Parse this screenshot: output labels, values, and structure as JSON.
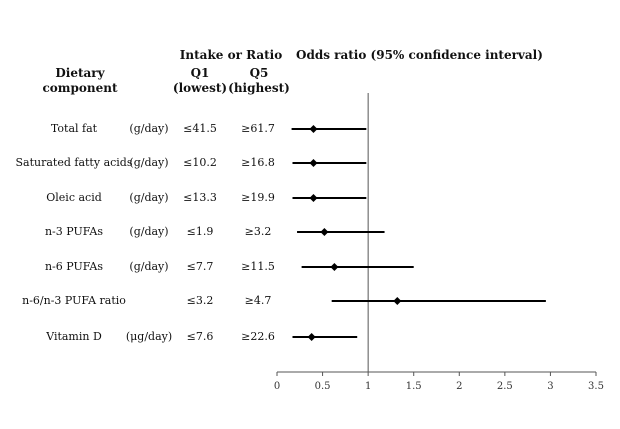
{
  "headers": {
    "dietary_component": "Dietary\ncomponent",
    "intake_group": "Intake or Ratio",
    "q1": "Q1\n(lowest)",
    "q5": "Q5\n(highest)",
    "odds_ratio": "Odds ratio (95% confidence interval)"
  },
  "rows": [
    {
      "component": "Total fat",
      "unit": "(g/day)",
      "q1": "≤41.5",
      "q5": "≥61.7"
    },
    {
      "component": "Saturated fatty acids",
      "unit": "(g/day)",
      "q1": "≤10.2",
      "q5": "≥16.8"
    },
    {
      "component": "Oleic acid",
      "unit": "(g/day)",
      "q1": "≤13.3",
      "q5": "≥19.9"
    },
    {
      "component": "n-3 PUFAs",
      "unit": "(g/day)",
      "q1": "≤1.9",
      "q5": "≥3.2"
    },
    {
      "component": "n-6 PUFAs",
      "unit": "(g/day)",
      "q1": "≤7.7",
      "q5": "≥11.5"
    },
    {
      "component": "n-6/n-3 PUFA ratio",
      "unit": "",
      "q1": "≤3.2",
      "q5": "≥4.7"
    },
    {
      "component": "Vitamin D",
      "unit": "(μg/day)",
      "q1": "≤7.6",
      "q5": "≥22.6"
    }
  ],
  "chart_data": {
    "type": "forest",
    "title": "Odds ratio (95% confidence interval)",
    "xlim": [
      0,
      3.5
    ],
    "x_ticks": [
      0,
      0.5,
      1,
      1.5,
      2,
      2.5,
      3,
      3.5
    ],
    "x_tick_labels": [
      "0",
      "0.5",
      "1",
      "1.5",
      "2",
      "2.5",
      "3",
      "3.5"
    ],
    "reference_line": 1,
    "categories": [
      "Total fat",
      "Saturated fatty acids",
      "Oleic acid",
      "n-3 PUFAs",
      "n-6 PUFAs",
      "n-6/n-3 PUFA ratio",
      "Vitamin D"
    ],
    "estimates": [
      0.4,
      0.4,
      0.4,
      0.52,
      0.63,
      1.32,
      0.38
    ],
    "lower": [
      0.16,
      0.17,
      0.17,
      0.22,
      0.27,
      0.6,
      0.17
    ],
    "upper": [
      0.98,
      0.98,
      0.98,
      1.18,
      1.5,
      2.95,
      0.88
    ],
    "marker_color": "#000000",
    "line_color": "#000000"
  }
}
